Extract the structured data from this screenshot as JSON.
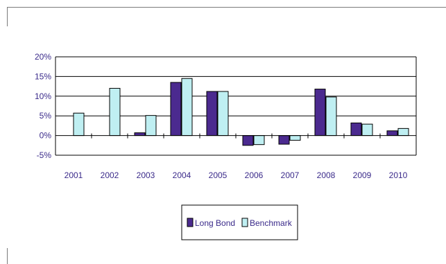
{
  "chart_data": {
    "type": "bar",
    "categories": [
      "2001",
      "2002",
      "2003",
      "2004",
      "2005",
      "2006",
      "2007",
      "2008",
      "2009",
      "2010"
    ],
    "series": [
      {
        "name": "Long Bond",
        "color": "#4b2a8f",
        "values": [
          null,
          null,
          0.7,
          13.5,
          11.2,
          -2.5,
          -2.2,
          11.8,
          3.2,
          1.2
        ]
      },
      {
        "name": "Benchmark",
        "color": "#bfeff2",
        "values": [
          5.7,
          12.0,
          5.1,
          14.5,
          11.2,
          -2.3,
          -1.2,
          9.8,
          2.9,
          1.8
        ]
      }
    ],
    "y_ticks": [
      "20%",
      "15%",
      "10%",
      "5%",
      "0%",
      "-5%"
    ],
    "y_tick_values": [
      20,
      15,
      10,
      5,
      0,
      -5
    ],
    "ylim": [
      -5,
      20
    ],
    "grid": true,
    "legend_position": "bottom-center",
    "title": "",
    "xlabel": "",
    "ylabel": ""
  }
}
